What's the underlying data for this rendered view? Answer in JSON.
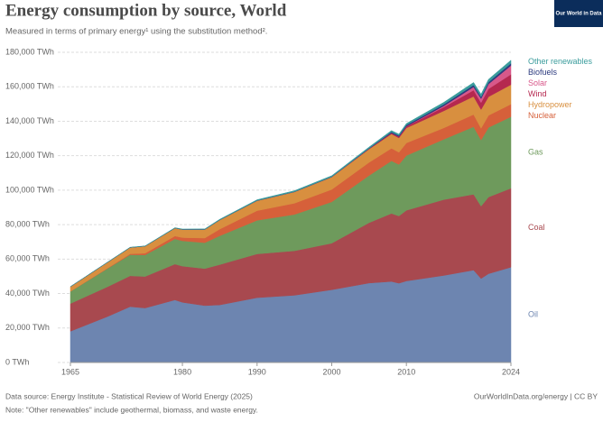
{
  "chart_data": {
    "type": "stacked-area",
    "title": "Energy consumption by source, World",
    "subtitle": "Measured in terms of primary energy¹ using the substitution method².",
    "logo": "Our World in Data",
    "source": "Data source: Energy Institute - Statistical Review of World Energy (2025)",
    "url": "OurWorldInData.org/energy | CC BY",
    "note": "Note: \"Other renewables\" include geothermal, biomass, and waste energy.",
    "x": [
      1965,
      1970,
      1973,
      1975,
      1979,
      1980,
      1983,
      1985,
      1990,
      1995,
      2000,
      2005,
      2008,
      2009,
      2010,
      2015,
      2019,
      2020,
      2021,
      2024
    ],
    "xlim": [
      1965,
      2024
    ],
    "xticks": [
      1965,
      1980,
      1990,
      2000,
      2010,
      2024
    ],
    "ylim": [
      0,
      180000
    ],
    "yticks": [
      {
        "value": 0,
        "label": "0 TWh"
      },
      {
        "value": 20000,
        "label": "20,000 TWh"
      },
      {
        "value": 40000,
        "label": "40,000 TWh"
      },
      {
        "value": 60000,
        "label": "60,000 TWh"
      },
      {
        "value": 80000,
        "label": "80,000 TWh"
      },
      {
        "value": 100000,
        "label": "100,000 TWh"
      },
      {
        "value": 120000,
        "label": "120,000 TWh"
      },
      {
        "value": 140000,
        "label": "140,000 TWh"
      },
      {
        "value": 160000,
        "label": "160,000 TWh"
      },
      {
        "value": 180000,
        "label": "180,000 TWh"
      }
    ],
    "grid": true,
    "series": [
      {
        "name": "Oil",
        "color": "#6d85b0",
        "values": [
          18100,
          26700,
          32400,
          31600,
          36300,
          34900,
          33000,
          33400,
          37600,
          39000,
          42200,
          46100,
          47000,
          46000,
          47300,
          50500,
          53600,
          48700,
          51500,
          55300
        ]
      },
      {
        "name": "Coal",
        "color": "#a8494f",
        "values": [
          16100,
          17300,
          17900,
          18300,
          20800,
          21000,
          21500,
          23400,
          25400,
          25800,
          27000,
          35000,
          39500,
          39000,
          41000,
          44000,
          44000,
          42000,
          44500,
          45800
        ]
      },
      {
        "name": "Gas",
        "color": "#6e9a5c",
        "values": [
          7000,
          10600,
          12200,
          12500,
          14600,
          14700,
          15000,
          16700,
          19500,
          21100,
          24000,
          27400,
          30500,
          29900,
          31800,
          35000,
          39200,
          38400,
          40400,
          41500
        ]
      },
      {
        "name": "Nuclear",
        "color": "#d6603a",
        "values": [
          70,
          220,
          550,
          1000,
          1700,
          1900,
          2700,
          3900,
          5600,
          6500,
          7200,
          7600,
          7300,
          7100,
          7300,
          6600,
          7100,
          6800,
          7000,
          7300
        ]
      },
      {
        "name": "Hydropower",
        "color": "#d88f3f",
        "values": [
          2700,
          3400,
          3700,
          4100,
          4600,
          4700,
          5000,
          5300,
          5800,
          6600,
          7200,
          7700,
          8300,
          8300,
          8700,
          9900,
          10500,
          10900,
          10800,
          11300
        ]
      },
      {
        "name": "Wind",
        "color": "#b5284f",
        "values": [
          0,
          0,
          0,
          0,
          0,
          0,
          0,
          0,
          10,
          20,
          80,
          270,
          570,
          720,
          900,
          2200,
          3600,
          4000,
          4600,
          6000
        ]
      },
      {
        "name": "Solar",
        "color": "#d8588a",
        "values": [
          0,
          0,
          0,
          0,
          0,
          0,
          0,
          0,
          0,
          0,
          0,
          10,
          30,
          50,
          90,
          680,
          1900,
          2300,
          2800,
          5100
        ]
      },
      {
        "name": "Biofuels",
        "color": "#2c3a7e",
        "values": [
          0,
          0,
          0,
          0,
          0,
          20,
          30,
          50,
          70,
          100,
          110,
          230,
          580,
          630,
          690,
          870,
          1100,
          1030,
          1100,
          1300
        ]
      },
      {
        "name": "Other renewables",
        "color": "#3a9c9c",
        "values": [
          70,
          120,
          140,
          160,
          230,
          240,
          300,
          350,
          470,
          550,
          600,
          700,
          800,
          830,
          900,
          1200,
          1500,
          1560,
          1620,
          1800
        ]
      }
    ]
  }
}
